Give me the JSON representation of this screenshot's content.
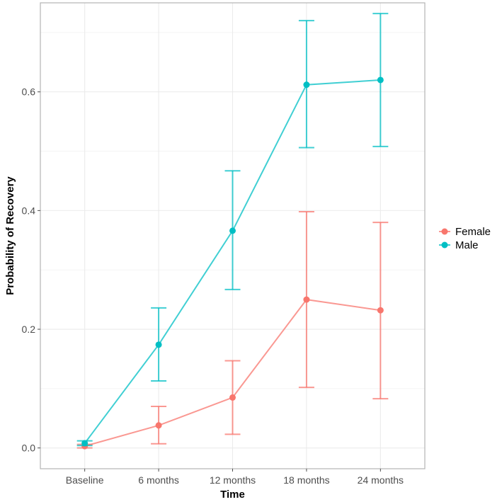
{
  "chart_data": {
    "type": "line",
    "xlabel": "Time",
    "ylabel": "Probability of Recovery",
    "categories": [
      "Baseline",
      "6 months",
      "12 months",
      "18 months",
      "24 months"
    ],
    "ylim": [
      -0.035,
      0.75
    ],
    "yticks": [
      0.0,
      0.2,
      0.4,
      0.6
    ],
    "ytick_labels": [
      "0.0",
      "0.2",
      "0.4",
      "0.6"
    ],
    "grid": true,
    "error_bars": true,
    "legend_position": "right",
    "series": [
      {
        "name": "Female",
        "color": "#F8766D",
        "values": [
          0.003,
          0.038,
          0.085,
          0.25,
          0.232
        ],
        "lower": [
          0.0,
          0.007,
          0.023,
          0.102,
          0.083
        ],
        "upper": [
          0.006,
          0.07,
          0.147,
          0.398,
          0.38
        ]
      },
      {
        "name": "Male",
        "color": "#00BFC4",
        "values": [
          0.008,
          0.174,
          0.366,
          0.612,
          0.62
        ],
        "lower": [
          0.004,
          0.113,
          0.267,
          0.506,
          0.508
        ],
        "upper": [
          0.012,
          0.236,
          0.467,
          0.72,
          0.732
        ]
      }
    ]
  }
}
